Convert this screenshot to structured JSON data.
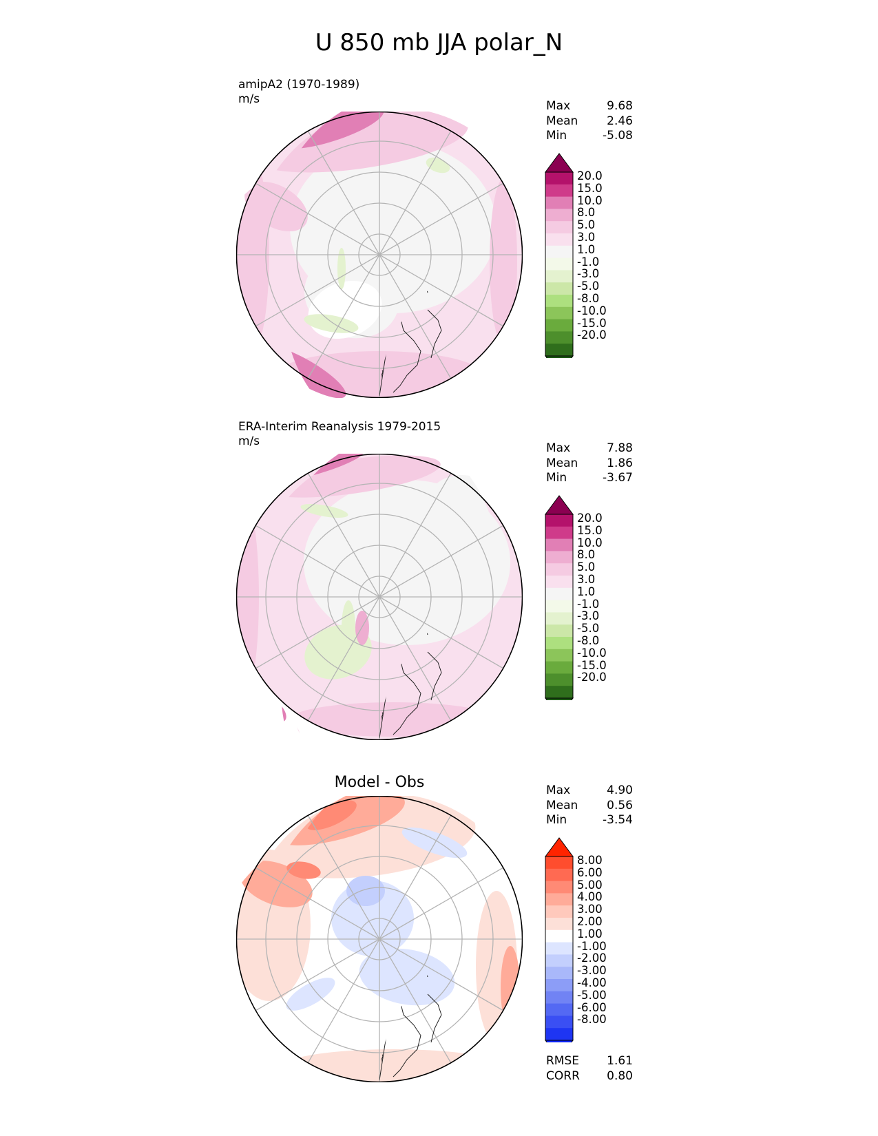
{
  "title": "U 850 mb JJA polar_N",
  "colors": {
    "pink_scale": [
      "#8b0051",
      "#b4126b",
      "#cf3b8a",
      "#e17fb5",
      "#eeaed1",
      "#f5cbe2",
      "#f9e0ee",
      "#f5f5f5",
      "#f3f9e9",
      "#e4f2cf",
      "#cce7a8",
      "#ade07f",
      "#8cc55a",
      "#6aab3d",
      "#4d8f2c",
      "#2f6e1c",
      "#1f5a17"
    ],
    "diff_scale": [
      "#ff2400",
      "#ff4d2e",
      "#ff6a52",
      "#ff8a75",
      "#ffab99",
      "#ffc9bc",
      "#fde0d8",
      "#ffffff",
      "#dde5ff",
      "#c3cffd",
      "#a9b8fa",
      "#8c9df7",
      "#7183f4",
      "#5469f3",
      "#3a4ff3",
      "#1e35f3",
      "#0a22f4"
    ]
  },
  "chart_data": [
    {
      "type": "heatmap",
      "projection": "north-polar-stereographic",
      "label": "amipA2 (1970-1989)",
      "units": "m/s",
      "stats": [
        {
          "name": "Max",
          "value": "9.68"
        },
        {
          "name": "Mean",
          "value": "2.46"
        },
        {
          "name": "Min",
          "value": "-5.08"
        }
      ],
      "colorbar_levels": [
        "20.0",
        "15.0",
        "10.0",
        "8.0",
        "5.0",
        "3.0",
        "1.0",
        "-1.0",
        "-3.0",
        "-5.0",
        "-8.0",
        "-10.0",
        "-15.0",
        "-20.0"
      ],
      "colorbar_extend": "both",
      "grid": true
    },
    {
      "type": "heatmap",
      "projection": "north-polar-stereographic",
      "label": "ERA-Interim Reanalysis 1979-2015",
      "units": "m/s",
      "stats": [
        {
          "name": "Max",
          "value": "7.88"
        },
        {
          "name": "Mean",
          "value": "1.86"
        },
        {
          "name": "Min",
          "value": "-3.67"
        }
      ],
      "colorbar_levels": [
        "20.0",
        "15.0",
        "10.0",
        "8.0",
        "5.0",
        "3.0",
        "1.0",
        "-1.0",
        "-3.0",
        "-5.0",
        "-8.0",
        "-10.0",
        "-15.0",
        "-20.0"
      ],
      "colorbar_extend": "both",
      "grid": true
    },
    {
      "type": "heatmap",
      "projection": "north-polar-stereographic",
      "title": "Model - Obs",
      "stats": [
        {
          "name": "Max",
          "value": "4.90"
        },
        {
          "name": "Mean",
          "value": "0.56"
        },
        {
          "name": "Min",
          "value": "-3.54"
        }
      ],
      "colorbar_levels": [
        "8.00",
        "6.00",
        "5.00",
        "4.00",
        "3.00",
        "2.00",
        "1.00",
        "-1.00",
        "-2.00",
        "-3.00",
        "-4.00",
        "-5.00",
        "-6.00",
        "-8.00"
      ],
      "colorbar_extend": "both",
      "metrics": [
        {
          "name": "RMSE",
          "value": "1.61"
        },
        {
          "name": "CORR",
          "value": "0.80"
        }
      ],
      "grid": true
    }
  ]
}
